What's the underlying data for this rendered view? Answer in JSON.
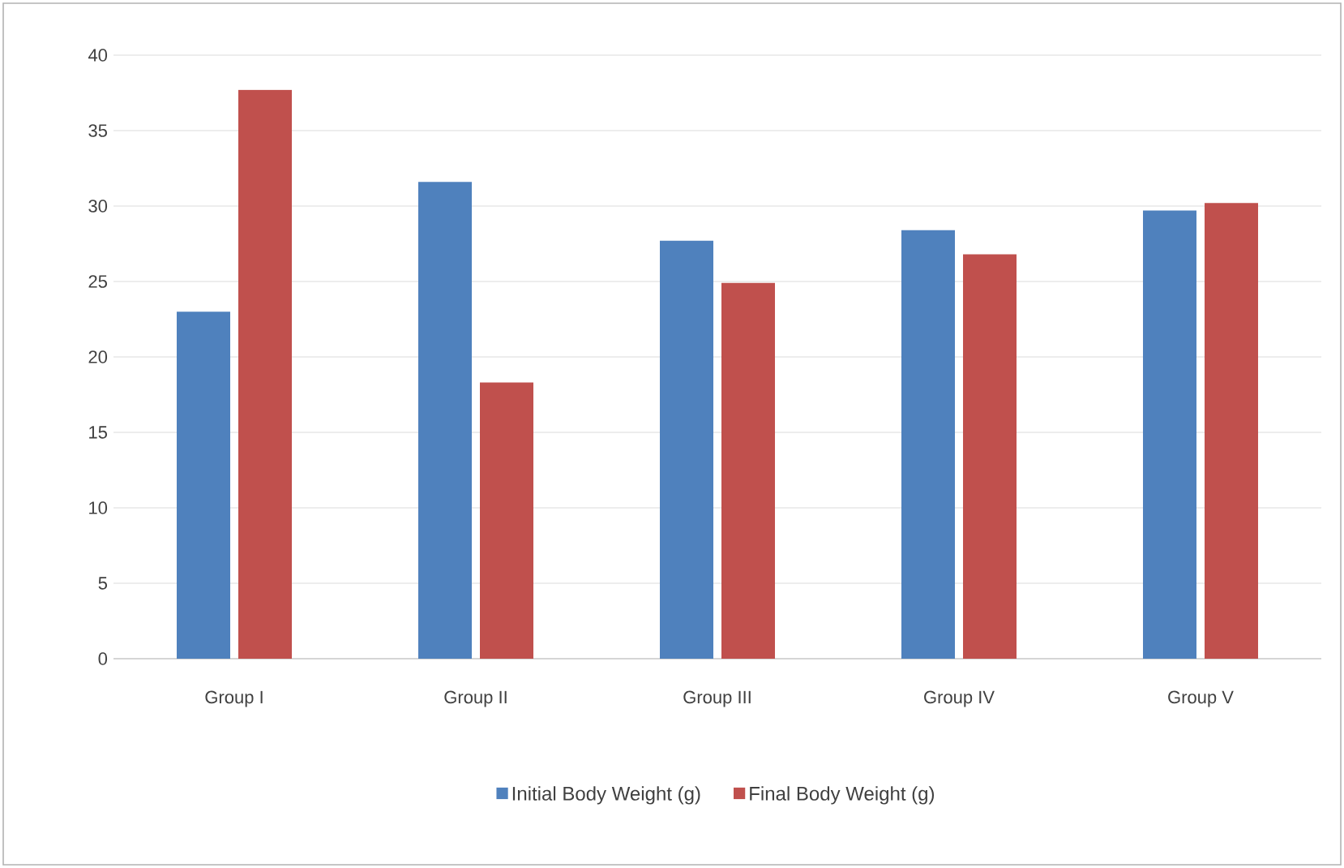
{
  "chart_data": {
    "type": "bar",
    "categories": [
      "Group I",
      "Group II",
      "Group III",
      "Group IV",
      "Group V"
    ],
    "series": [
      {
        "name": "Initial Body Weight (g)",
        "color": "#4f81bd",
        "values": [
          23.0,
          31.6,
          27.7,
          28.4,
          29.7
        ]
      },
      {
        "name": "Final Body Weight (g)",
        "color": "#c0504d",
        "values": [
          37.7,
          18.3,
          24.9,
          26.8,
          30.2
        ]
      }
    ],
    "ylim": [
      0,
      40
    ],
    "yticks": [
      0,
      5,
      10,
      15,
      20,
      25,
      30,
      35,
      40
    ],
    "grid": "y",
    "legend": "bottom"
  }
}
